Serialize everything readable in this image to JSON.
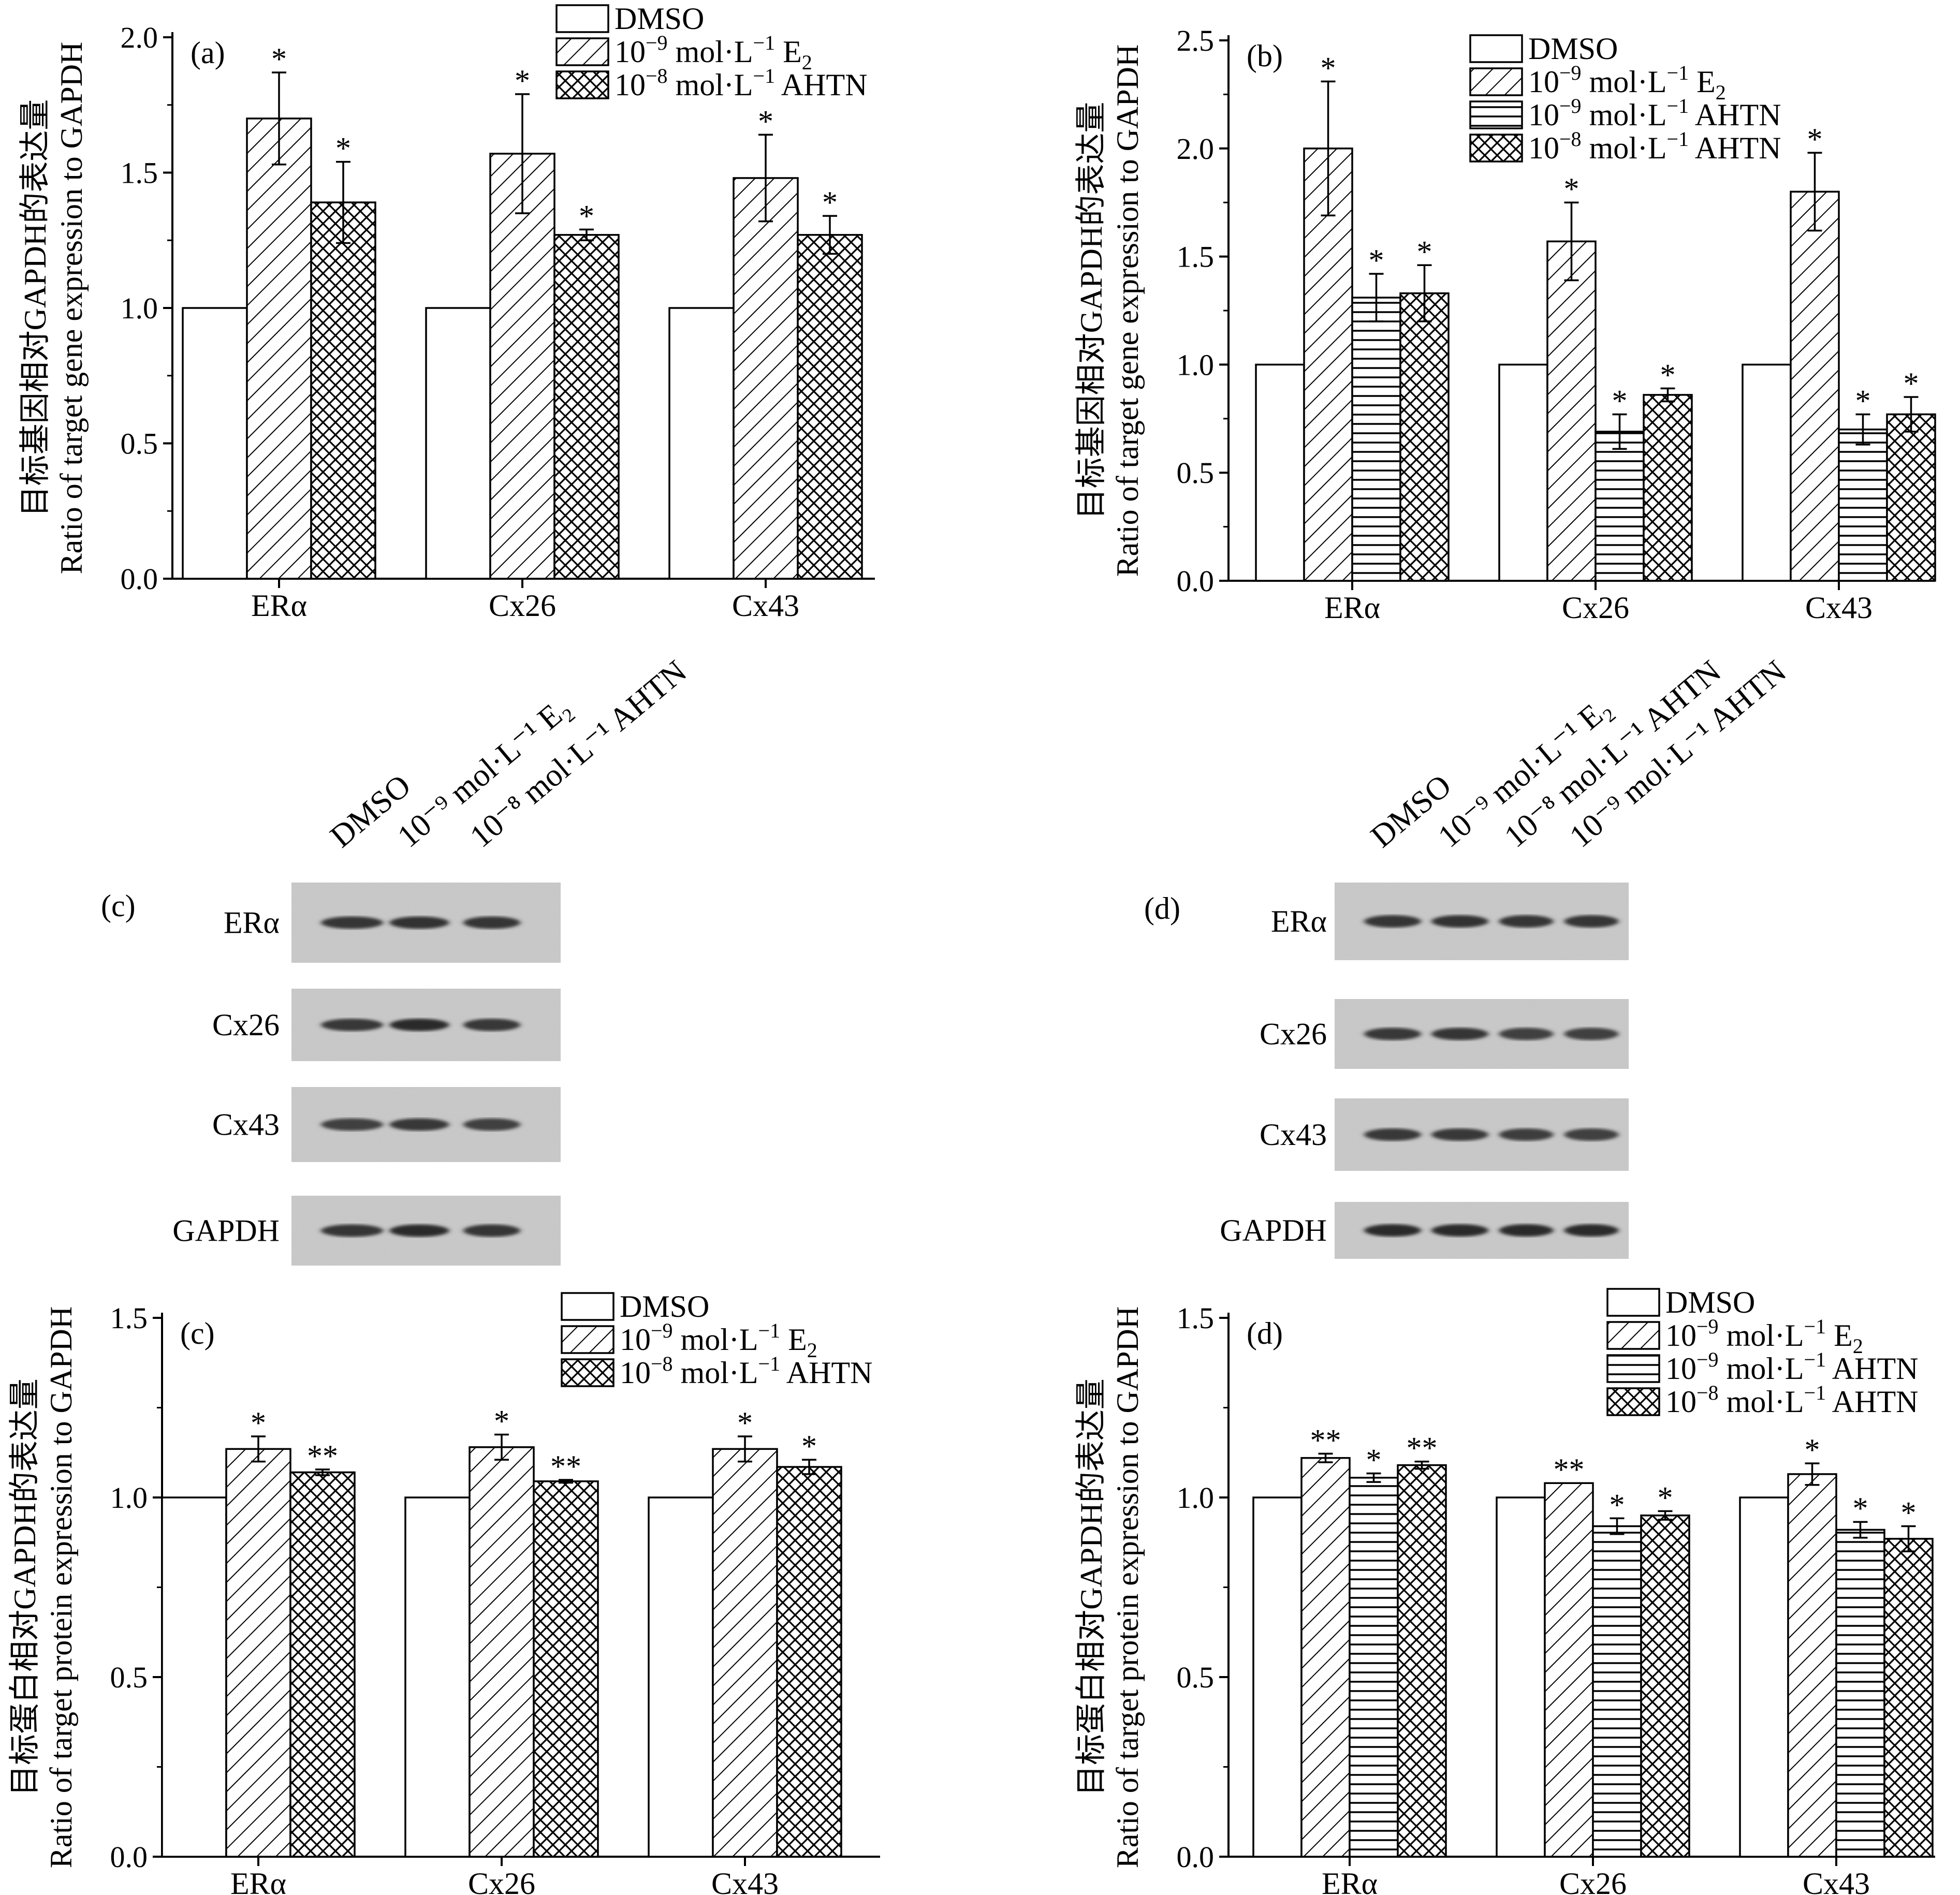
{
  "legend_labels": {
    "dmso": "DMSO",
    "e2_prefix": "10",
    "e2_exp": "−9",
    "e2_mid": " mol·L",
    "e2_unit_exp": "−1",
    "e2_species": " E",
    "e2_sub": "2",
    "ahtn9_prefix": "10",
    "ahtn9_exp": "−9",
    "ahtn9_mid": " mol·L",
    "ahtn9_unit_exp": "−1",
    "ahtn9_species": " AHTN",
    "ahtn8_prefix": "10",
    "ahtn8_exp": "−8",
    "ahtn8_mid": " mol·L",
    "ahtn8_unit_exp": "−1",
    "ahtn8_species": " AHTN"
  },
  "chart_data": [
    {
      "panel": "(a)",
      "type": "bar",
      "ylabel_cn": "目标基因相对GAPDH的表达量",
      "ylabel_en": "Ratio of target gene expression to GAPDH",
      "ylim": [
        0,
        2.0
      ],
      "yticks": [
        "0.0",
        "0.5",
        "1.0",
        "1.5",
        "2.0"
      ],
      "categories": [
        "ERα",
        "Cx26",
        "Cx43"
      ],
      "legend_position": "top-right",
      "series": [
        {
          "key": "dmso",
          "pattern": "white",
          "values": [
            1.0,
            1.0,
            1.0
          ],
          "errors": [
            0,
            0,
            0
          ],
          "sig": [
            "",
            "",
            ""
          ]
        },
        {
          "key": "e2",
          "pattern": "diag",
          "values": [
            1.7,
            1.57,
            1.48
          ],
          "errors": [
            0.17,
            0.22,
            0.16
          ],
          "sig": [
            "*",
            "*",
            "*"
          ]
        },
        {
          "key": "ahtn8",
          "pattern": "cross",
          "values": [
            1.39,
            1.27,
            1.27
          ],
          "errors": [
            0.15,
            0.02,
            0.07
          ],
          "sig": [
            "*",
            "*",
            "*"
          ]
        }
      ]
    },
    {
      "panel": "(b)",
      "type": "bar",
      "ylabel_cn": "目标基因相对GAPDH的表达量",
      "ylabel_en": "Ratio of target gene expression to GAPDH",
      "ylim": [
        0,
        2.5
      ],
      "yticks": [
        "0.0",
        "0.5",
        "1.0",
        "1.5",
        "2.0",
        "2.5"
      ],
      "categories": [
        "ERα",
        "Cx26",
        "Cx43"
      ],
      "legend_position": "top-right",
      "series": [
        {
          "key": "dmso",
          "pattern": "white",
          "values": [
            1.0,
            1.0,
            1.0
          ],
          "errors": [
            0,
            0,
            0
          ],
          "sig": [
            "",
            "",
            ""
          ]
        },
        {
          "key": "e2",
          "pattern": "diag",
          "values": [
            2.0,
            1.57,
            1.8
          ],
          "errors": [
            0.31,
            0.18,
            0.18
          ],
          "sig": [
            "*",
            "*",
            "*"
          ]
        },
        {
          "key": "ahtn9",
          "pattern": "horiz",
          "values": [
            1.31,
            0.69,
            0.7
          ],
          "errors": [
            0.11,
            0.08,
            0.07
          ],
          "sig": [
            "*",
            "*",
            "*"
          ]
        },
        {
          "key": "ahtn8",
          "pattern": "cross",
          "values": [
            1.33,
            0.86,
            0.77
          ],
          "errors": [
            0.13,
            0.03,
            0.08
          ],
          "sig": [
            "*",
            "*",
            "*"
          ]
        }
      ]
    },
    {
      "panel": "(c)",
      "type": "bar",
      "ylabel_cn": "目标蛋白相对GAPDH的表达量",
      "ylabel_en": "Ratio of target protein expression to GAPDH",
      "ylim": [
        0,
        1.5
      ],
      "yticks": [
        "0.0",
        "0.5",
        "1.0",
        "1.5"
      ],
      "categories": [
        "ERα",
        "Cx26",
        "Cx43"
      ],
      "legend_position": "top-right",
      "series": [
        {
          "key": "dmso",
          "pattern": "white",
          "values": [
            1.0,
            1.0,
            1.0
          ],
          "errors": [
            0,
            0,
            0
          ],
          "sig": [
            "",
            "",
            ""
          ]
        },
        {
          "key": "e2",
          "pattern": "diag",
          "values": [
            1.135,
            1.14,
            1.135
          ],
          "errors": [
            0.035,
            0.035,
            0.035
          ],
          "sig": [
            "*",
            "*",
            "*"
          ]
        },
        {
          "key": "ahtn8",
          "pattern": "cross",
          "values": [
            1.07,
            1.045,
            1.085
          ],
          "errors": [
            0.008,
            0.004,
            0.02
          ],
          "sig": [
            "**",
            "**",
            "*"
          ]
        }
      ]
    },
    {
      "panel": "(d)",
      "type": "bar",
      "ylabel_cn": "目标蛋白相对GAPDH的表达量",
      "ylabel_en": "Ratio of target protein expression to GAPDH",
      "ylim": [
        0,
        1.5
      ],
      "yticks": [
        "0.0",
        "0.5",
        "1.0",
        "1.5"
      ],
      "categories": [
        "ERα",
        "Cx26",
        "Cx43"
      ],
      "legend_position": "top-right",
      "series": [
        {
          "key": "dmso",
          "pattern": "white",
          "values": [
            1.0,
            1.0,
            1.0
          ],
          "errors": [
            0,
            0,
            0
          ],
          "sig": [
            "",
            "",
            ""
          ]
        },
        {
          "key": "e2",
          "pattern": "diag",
          "values": [
            1.11,
            1.04,
            1.065
          ],
          "errors": [
            0.012,
            0.0,
            0.03
          ],
          "sig": [
            "**",
            "**",
            "*"
          ]
        },
        {
          "key": "ahtn9",
          "pattern": "horiz",
          "values": [
            1.055,
            0.92,
            0.91
          ],
          "errors": [
            0.012,
            0.022,
            0.022
          ],
          "sig": [
            "*",
            "*",
            "*"
          ]
        },
        {
          "key": "ahtn8",
          "pattern": "cross",
          "values": [
            1.09,
            0.95,
            0.885
          ],
          "errors": [
            0.01,
            0.012,
            0.035
          ],
          "sig": [
            "**",
            "*",
            "*"
          ]
        }
      ]
    }
  ],
  "blots": [
    {
      "panel": "(c)",
      "lanes": [
        "DMSO",
        "10⁻⁹ mol·L⁻¹ E₂",
        "10⁻⁸ mol·L⁻¹ AHTN"
      ],
      "rows": [
        "ERα",
        "Cx26",
        "Cx43",
        "GAPDH"
      ]
    },
    {
      "panel": "(d)",
      "lanes": [
        "DMSO",
        "10⁻⁹ mol·L⁻¹ E₂",
        "10⁻⁸ mol·L⁻¹ AHTN",
        "10⁻⁹ mol·L⁻¹ AHTN"
      ],
      "rows": [
        "ERα",
        "Cx26",
        "Cx43",
        "GAPDH"
      ]
    }
  ]
}
